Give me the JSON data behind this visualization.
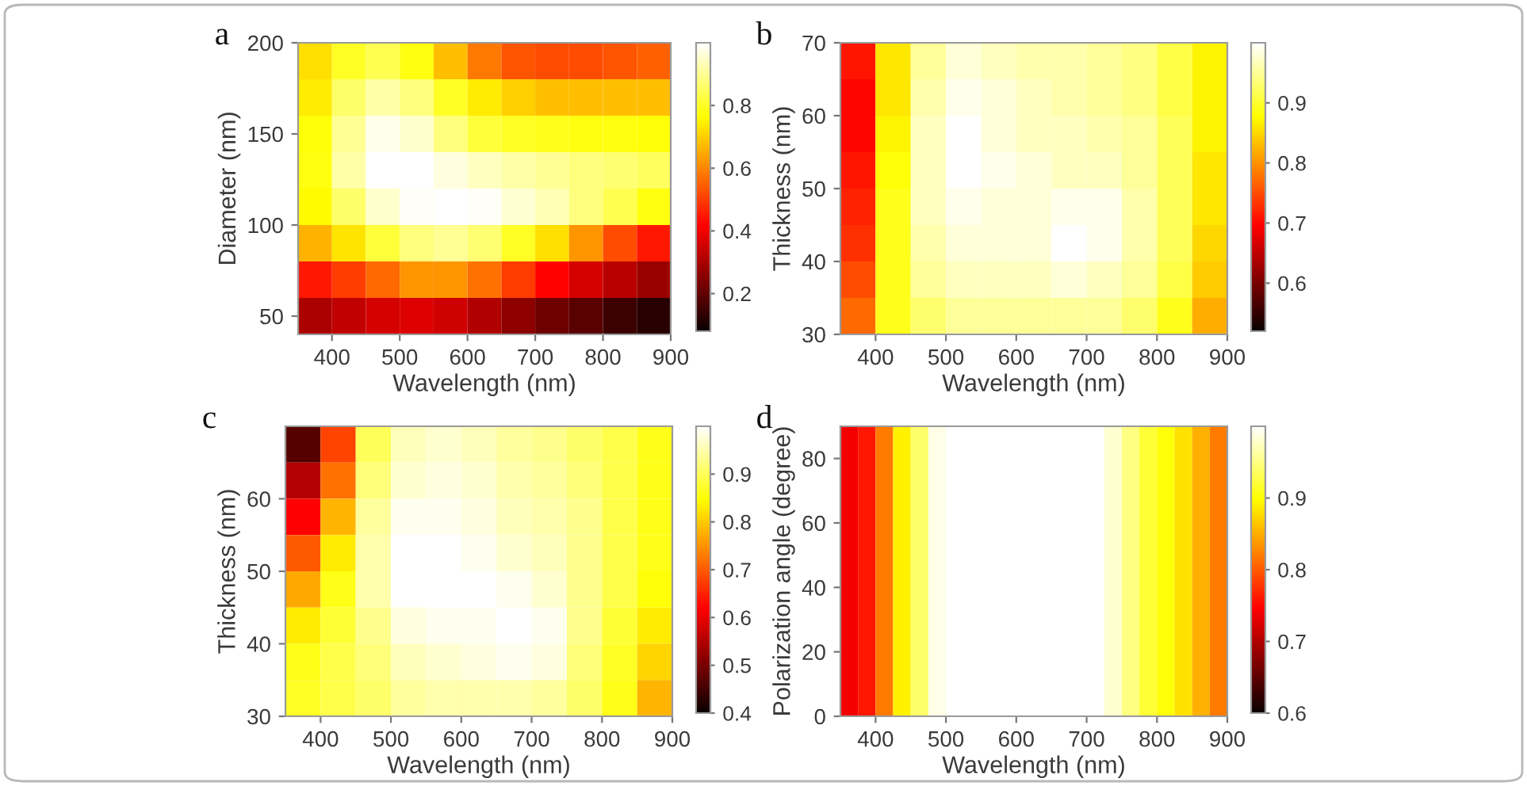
{
  "chart_data": [
    {
      "type": "heatmap",
      "title": "a",
      "xlabel": "Wavelength (nm)",
      "ylabel": "Diameter (nm)",
      "x": [
        375,
        425,
        475,
        525,
        575,
        625,
        675,
        725,
        775,
        825,
        875
      ],
      "y": [
        190,
        170,
        150,
        130,
        110,
        90,
        70,
        50
      ],
      "cells": [
        [
          0.72,
          0.8,
          0.84,
          0.78,
          0.68,
          0.58,
          0.53,
          0.52,
          0.52,
          0.53,
          0.55
        ],
        [
          0.74,
          0.86,
          0.92,
          0.88,
          0.8,
          0.74,
          0.7,
          0.68,
          0.68,
          0.68,
          0.68
        ],
        [
          0.77,
          0.9,
          0.98,
          0.95,
          0.88,
          0.82,
          0.8,
          0.79,
          0.78,
          0.78,
          0.77
        ],
        [
          0.78,
          0.92,
          1.0,
          1.0,
          0.97,
          0.94,
          0.92,
          0.9,
          0.88,
          0.87,
          0.85
        ],
        [
          0.76,
          0.86,
          0.95,
          0.99,
          1.0,
          0.99,
          0.96,
          0.93,
          0.88,
          0.84,
          0.78
        ],
        [
          0.66,
          0.73,
          0.82,
          0.88,
          0.9,
          0.87,
          0.8,
          0.72,
          0.62,
          0.52,
          0.45
        ],
        [
          0.45,
          0.5,
          0.56,
          0.62,
          0.62,
          0.57,
          0.5,
          0.42,
          0.36,
          0.32,
          0.28
        ],
        [
          0.3,
          0.33,
          0.36,
          0.37,
          0.35,
          0.31,
          0.26,
          0.22,
          0.19,
          0.15,
          0.12
        ]
      ],
      "xlim": [
        350,
        900
      ],
      "xticks": [
        400,
        500,
        600,
        700,
        800,
        900
      ],
      "ylim": [
        40,
        200
      ],
      "yticks": [
        50,
        100,
        150,
        200
      ],
      "clim": [
        0.08,
        1.0
      ],
      "cticks": [
        0.2,
        0.4,
        0.6,
        0.8
      ]
    },
    {
      "type": "heatmap",
      "title": "b",
      "xlabel": "Wavelength (nm)",
      "ylabel": "Thickness (nm)",
      "x": [
        375,
        425,
        475,
        525,
        575,
        625,
        675,
        725,
        775,
        825,
        875
      ],
      "y": [
        67.5,
        62.5,
        57.5,
        52.5,
        47.5,
        42.5,
        37.5,
        32.5
      ],
      "cells": [
        [
          0.71,
          0.86,
          0.95,
          0.98,
          0.97,
          0.96,
          0.96,
          0.95,
          0.94,
          0.91,
          0.87
        ],
        [
          0.7,
          0.86,
          0.96,
          0.99,
          0.98,
          0.97,
          0.96,
          0.95,
          0.94,
          0.91,
          0.87
        ],
        [
          0.7,
          0.87,
          0.97,
          1.0,
          0.98,
          0.97,
          0.97,
          0.96,
          0.95,
          0.92,
          0.87
        ],
        [
          0.71,
          0.88,
          0.97,
          1.0,
          0.99,
          0.98,
          0.97,
          0.97,
          0.95,
          0.92,
          0.86
        ],
        [
          0.72,
          0.89,
          0.97,
          0.99,
          0.98,
          0.98,
          0.99,
          0.99,
          0.96,
          0.92,
          0.86
        ],
        [
          0.73,
          0.89,
          0.96,
          0.98,
          0.98,
          0.98,
          1.0,
          0.99,
          0.96,
          0.92,
          0.85
        ],
        [
          0.75,
          0.89,
          0.95,
          0.97,
          0.97,
          0.97,
          0.98,
          0.97,
          0.95,
          0.91,
          0.84
        ],
        [
          0.77,
          0.89,
          0.93,
          0.95,
          0.95,
          0.95,
          0.95,
          0.95,
          0.93,
          0.89,
          0.82
        ]
      ],
      "xlim": [
        350,
        900
      ],
      "xticks": [
        400,
        500,
        600,
        700,
        800,
        900
      ],
      "ylim": [
        30,
        70
      ],
      "yticks": [
        30,
        40,
        50,
        60,
        70
      ],
      "clim": [
        0.52,
        1.0
      ],
      "cticks": [
        0.6,
        0.7,
        0.8,
        0.9
      ]
    },
    {
      "type": "heatmap",
      "title": "c",
      "xlabel": "Wavelength (nm)",
      "ylabel": "Thickness (nm)",
      "x": [
        375,
        425,
        475,
        525,
        575,
        625,
        675,
        725,
        775,
        825,
        875
      ],
      "y": [
        67.5,
        62.5,
        57.5,
        52.5,
        47.5,
        42.5,
        37.5,
        32.5
      ],
      "cells": [
        [
          0.47,
          0.68,
          0.9,
          0.96,
          0.97,
          0.96,
          0.94,
          0.93,
          0.91,
          0.89,
          0.86
        ],
        [
          0.55,
          0.72,
          0.92,
          0.97,
          0.98,
          0.97,
          0.95,
          0.94,
          0.92,
          0.89,
          0.86
        ],
        [
          0.62,
          0.78,
          0.94,
          0.99,
          0.99,
          0.98,
          0.96,
          0.95,
          0.93,
          0.89,
          0.86
        ],
        [
          0.7,
          0.83,
          0.95,
          1.0,
          1.0,
          0.99,
          0.97,
          0.96,
          0.93,
          0.89,
          0.86
        ],
        [
          0.77,
          0.86,
          0.95,
          1.0,
          1.0,
          1.0,
          0.99,
          0.97,
          0.93,
          0.89,
          0.85
        ],
        [
          0.83,
          0.88,
          0.93,
          0.98,
          0.99,
          0.99,
          1.0,
          0.99,
          0.93,
          0.88,
          0.83
        ],
        [
          0.86,
          0.89,
          0.92,
          0.96,
          0.97,
          0.98,
          0.99,
          0.98,
          0.92,
          0.87,
          0.81
        ],
        [
          0.87,
          0.89,
          0.91,
          0.94,
          0.95,
          0.95,
          0.95,
          0.94,
          0.91,
          0.86,
          0.78
        ]
      ],
      "xlim": [
        350,
        900
      ],
      "xticks": [
        400,
        500,
        600,
        700,
        800,
        900
      ],
      "ylim": [
        30,
        70
      ],
      "yticks": [
        30,
        40,
        50,
        60
      ],
      "clim": [
        0.4,
        1.0
      ],
      "cticks": [
        0.4,
        0.5,
        0.6,
        0.7,
        0.8,
        0.9
      ]
    },
    {
      "type": "heatmap",
      "title": "d",
      "xlabel": "Wavelength (nm)",
      "ylabel": "Polarization angle (degree)",
      "x": [
        362.5,
        387.5,
        412.5,
        437.5,
        462.5,
        487.5,
        512.5,
        537.5,
        562.5,
        587.5,
        612.5,
        637.5,
        662.5,
        687.5,
        712.5,
        737.5,
        762.5,
        787.5,
        812.5,
        837.5,
        862.5,
        887.5
      ],
      "y": [
        67.5,
        22.5
      ],
      "cells": [
        [
          0.74,
          0.76,
          0.82,
          0.89,
          0.94,
          0.99,
          1.0,
          1.0,
          1.0,
          1.0,
          1.0,
          1.0,
          1.0,
          1.0,
          1.0,
          0.98,
          0.95,
          0.92,
          0.9,
          0.88,
          0.85,
          0.82
        ],
        [
          0.74,
          0.76,
          0.82,
          0.89,
          0.94,
          0.99,
          1.0,
          1.0,
          1.0,
          1.0,
          1.0,
          1.0,
          1.0,
          1.0,
          1.0,
          0.98,
          0.95,
          0.92,
          0.9,
          0.88,
          0.85,
          0.82
        ]
      ],
      "xlim": [
        350,
        900
      ],
      "xticks": [
        400,
        500,
        600,
        700,
        800,
        900
      ],
      "ylim": [
        0,
        90
      ],
      "yticks": [
        0,
        20,
        40,
        60,
        80
      ],
      "clim": [
        0.6,
        1.0
      ],
      "cticks": [
        0.6,
        0.7,
        0.8,
        0.9
      ]
    }
  ]
}
